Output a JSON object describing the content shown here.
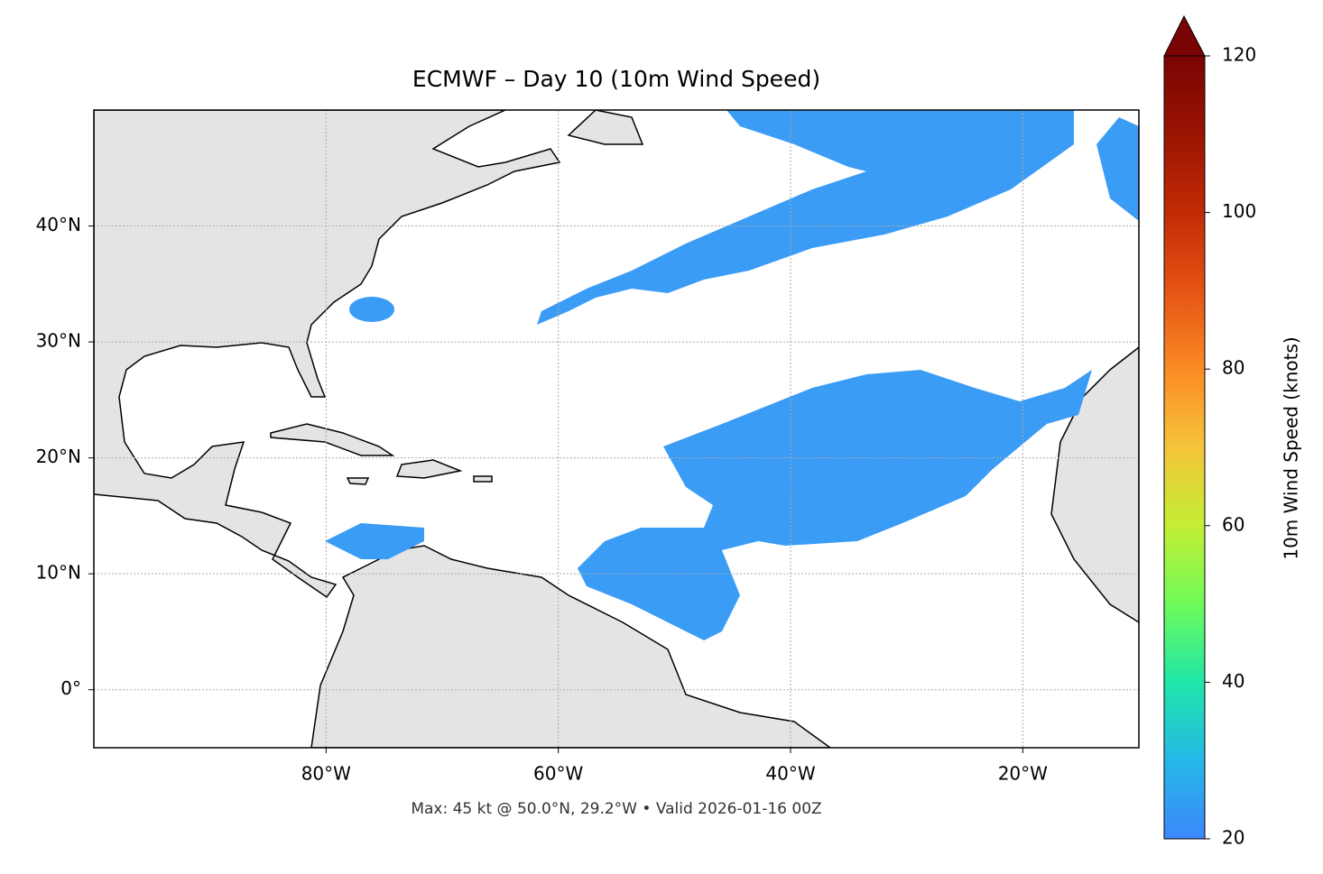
{
  "map_data": {
    "title": "ECMWF – Day 10 (10m Wind Speed)",
    "xlim": [
      -100,
      -10
    ],
    "ylim": [
      -5,
      50
    ],
    "xticks": [
      {
        "value": -80,
        "label": "80°W"
      },
      {
        "value": -60,
        "label": "60°W"
      },
      {
        "value": -40,
        "label": "40°W"
      },
      {
        "value": -20,
        "label": "20°W"
      }
    ],
    "yticks": [
      {
        "value": 0,
        "label": "0°"
      },
      {
        "value": 10,
        "label": "10°N"
      },
      {
        "value": 20,
        "label": "20°N"
      },
      {
        "value": 30,
        "label": "30°N"
      },
      {
        "value": 40,
        "label": "40°N"
      }
    ],
    "footer": "Max: 45 kt @ 50.0°N, 29.2°W • Valid 2026-01-16 00Z",
    "colorbar": {
      "label": "10m Wind Speed (knots)",
      "lim": [
        20,
        120
      ],
      "ticks": [
        20,
        40,
        60,
        80,
        100,
        120
      ]
    }
  }
}
